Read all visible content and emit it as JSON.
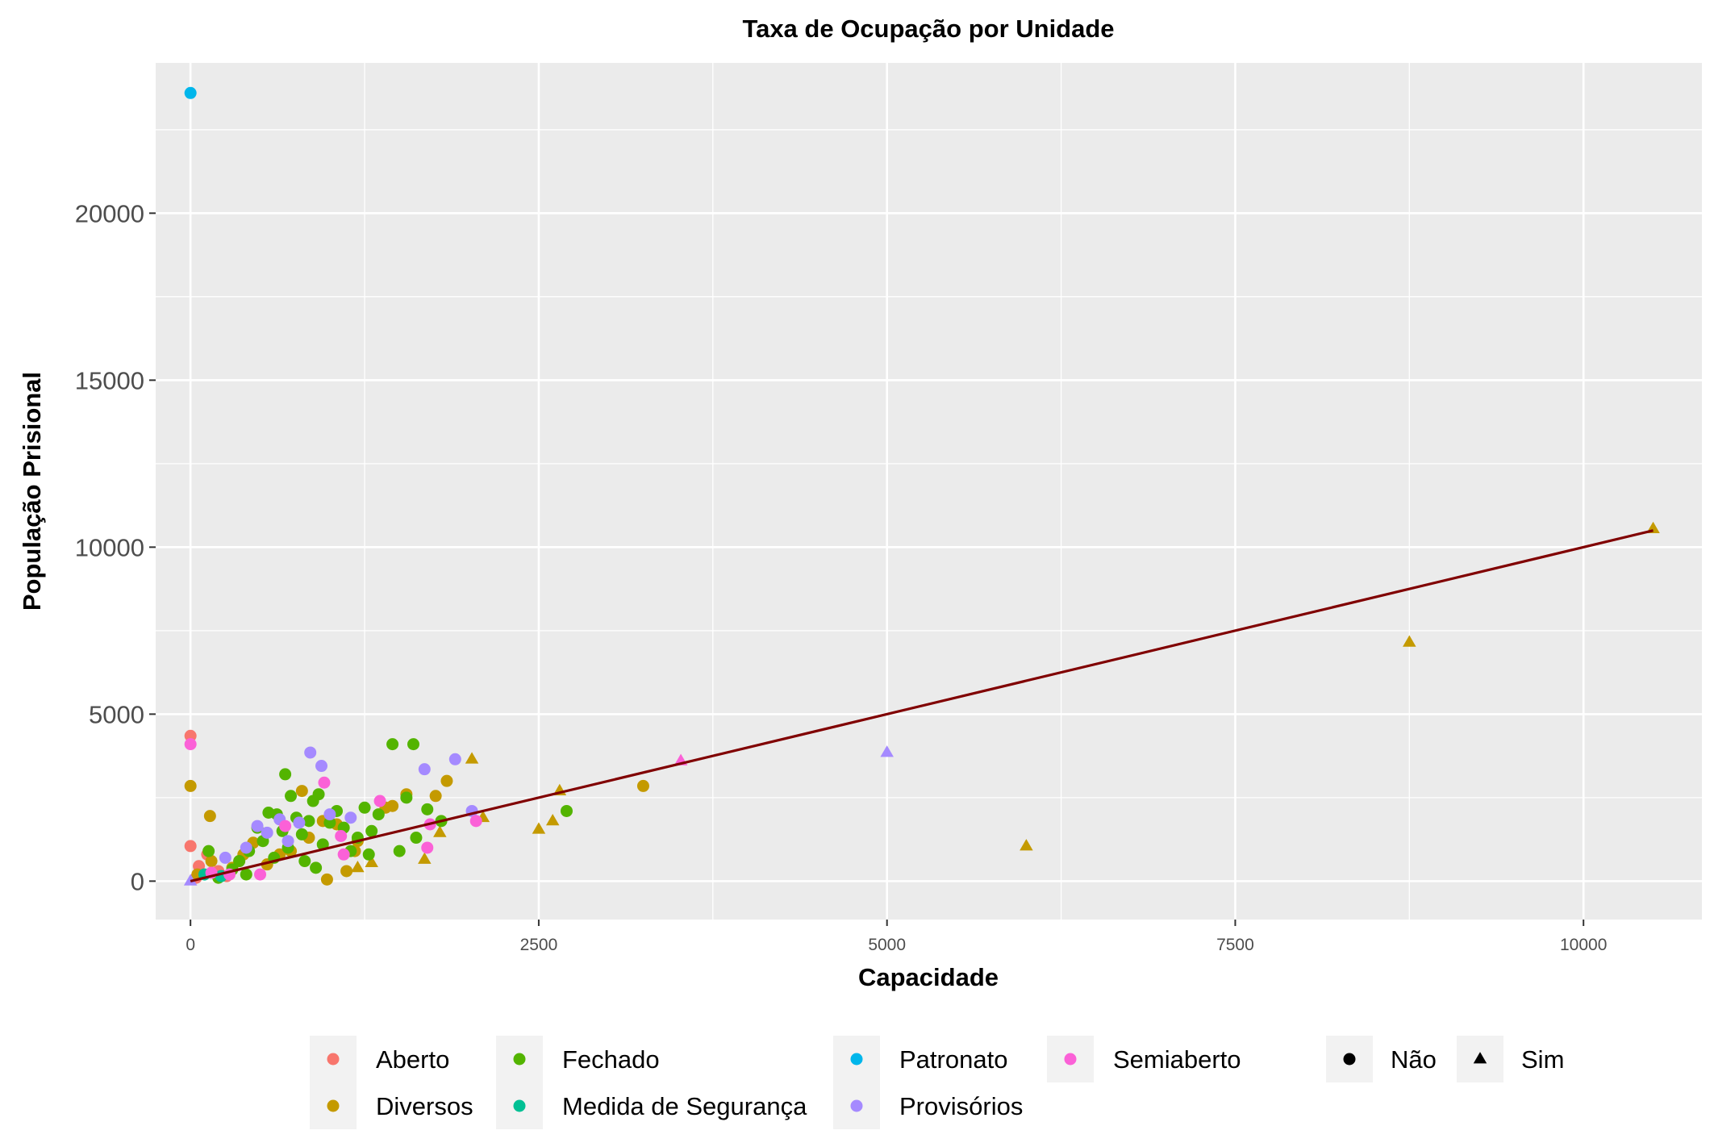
{
  "chart_data": {
    "type": "scatter",
    "title": "Taxa de Ocupação por Unidade",
    "xlabel": "Capacidade",
    "ylabel": "População Prisional",
    "xlim": [
      -250,
      10850
    ],
    "ylim": [
      -1150,
      24500
    ],
    "x_ticks": [
      0,
      2500,
      5000,
      7500,
      10000
    ],
    "y_ticks": [
      0,
      5000,
      10000,
      15000,
      20000
    ],
    "grid": true,
    "legend_position": "bottom",
    "color_legend": [
      {
        "name": "Aberto",
        "color": "#F8766D"
      },
      {
        "name": "Diversos",
        "color": "#C49A00"
      },
      {
        "name": "Fechado",
        "color": "#53B400"
      },
      {
        "name": "Medida de Segurança",
        "color": "#00C094"
      },
      {
        "name": "Patronato",
        "color": "#00B6EB"
      },
      {
        "name": "Provisórios",
        "color": "#A58AFF"
      },
      {
        "name": "Semiaberto",
        "color": "#FB61D7"
      }
    ],
    "shape_legend": [
      {
        "name": "Não",
        "shape": "circle"
      },
      {
        "name": "Sim",
        "shape": "triangle"
      }
    ],
    "trend_line": {
      "x": [
        0,
        10500
      ],
      "y": [
        0,
        10500
      ],
      "color": "#800000"
    },
    "series": [
      {
        "name": "Aberto",
        "color": "#F8766D",
        "points": [
          {
            "x": 0,
            "y": 4350,
            "s": "circle"
          },
          {
            "x": 0,
            "y": 1050,
            "s": "circle"
          },
          {
            "x": 60,
            "y": 450,
            "s": "circle"
          },
          {
            "x": 120,
            "y": 800,
            "s": "circle"
          },
          {
            "x": 200,
            "y": 300,
            "s": "circle"
          },
          {
            "x": 260,
            "y": 150,
            "s": "circle"
          },
          {
            "x": 40,
            "y": 100,
            "s": "circle"
          },
          {
            "x": 350,
            "y": 600,
            "s": "circle"
          }
        ]
      },
      {
        "name": "Diversos",
        "color": "#C49A00",
        "points": [
          {
            "x": 0,
            "y": 2850,
            "s": "circle"
          },
          {
            "x": 140,
            "y": 1950,
            "s": "circle"
          },
          {
            "x": 50,
            "y": 200,
            "s": "circle"
          },
          {
            "x": 150,
            "y": 600,
            "s": "circle"
          },
          {
            "x": 300,
            "y": 400,
            "s": "circle"
          },
          {
            "x": 380,
            "y": 800,
            "s": "circle"
          },
          {
            "x": 450,
            "y": 1150,
            "s": "circle"
          },
          {
            "x": 550,
            "y": 500,
            "s": "circle"
          },
          {
            "x": 640,
            "y": 800,
            "s": "circle"
          },
          {
            "x": 720,
            "y": 900,
            "s": "circle"
          },
          {
            "x": 800,
            "y": 2700,
            "s": "circle"
          },
          {
            "x": 850,
            "y": 1300,
            "s": "circle"
          },
          {
            "x": 950,
            "y": 1800,
            "s": "circle"
          },
          {
            "x": 980,
            "y": 50,
            "s": "circle"
          },
          {
            "x": 1050,
            "y": 1700,
            "s": "circle"
          },
          {
            "x": 1120,
            "y": 300,
            "s": "circle"
          },
          {
            "x": 1180,
            "y": 900,
            "s": "circle"
          },
          {
            "x": 1200,
            "y": 1200,
            "s": "circle"
          },
          {
            "x": 1400,
            "y": 2200,
            "s": "circle"
          },
          {
            "x": 1450,
            "y": 2250,
            "s": "circle"
          },
          {
            "x": 1550,
            "y": 2600,
            "s": "circle"
          },
          {
            "x": 1760,
            "y": 2550,
            "s": "circle"
          },
          {
            "x": 1840,
            "y": 3000,
            "s": "circle"
          },
          {
            "x": 3250,
            "y": 2850,
            "s": "circle"
          },
          {
            "x": 2020,
            "y": 3650,
            "s": "triangle"
          },
          {
            "x": 2100,
            "y": 1900,
            "s": "triangle"
          },
          {
            "x": 2500,
            "y": 1550,
            "s": "triangle"
          },
          {
            "x": 2600,
            "y": 1800,
            "s": "triangle"
          },
          {
            "x": 2650,
            "y": 2700,
            "s": "triangle"
          },
          {
            "x": 1680,
            "y": 650,
            "s": "triangle"
          },
          {
            "x": 1790,
            "y": 1450,
            "s": "triangle"
          },
          {
            "x": 1300,
            "y": 550,
            "s": "triangle"
          },
          {
            "x": 1200,
            "y": 400,
            "s": "triangle"
          },
          {
            "x": 6000,
            "y": 1050,
            "s": "triangle"
          },
          {
            "x": 8750,
            "y": 7150,
            "s": "triangle"
          },
          {
            "x": 10500,
            "y": 10550,
            "s": "triangle"
          }
        ]
      },
      {
        "name": "Fechado",
        "color": "#53B400",
        "points": [
          {
            "x": 130,
            "y": 900,
            "s": "circle"
          },
          {
            "x": 200,
            "y": 100,
            "s": "circle"
          },
          {
            "x": 300,
            "y": 350,
            "s": "circle"
          },
          {
            "x": 350,
            "y": 600,
            "s": "circle"
          },
          {
            "x": 400,
            "y": 200,
            "s": "circle"
          },
          {
            "x": 420,
            "y": 900,
            "s": "circle"
          },
          {
            "x": 480,
            "y": 1600,
            "s": "circle"
          },
          {
            "x": 520,
            "y": 1200,
            "s": "circle"
          },
          {
            "x": 560,
            "y": 2050,
            "s": "circle"
          },
          {
            "x": 600,
            "y": 700,
            "s": "circle"
          },
          {
            "x": 620,
            "y": 2000,
            "s": "circle"
          },
          {
            "x": 660,
            "y": 1500,
            "s": "circle"
          },
          {
            "x": 680,
            "y": 3200,
            "s": "circle"
          },
          {
            "x": 700,
            "y": 1000,
            "s": "circle"
          },
          {
            "x": 720,
            "y": 2550,
            "s": "circle"
          },
          {
            "x": 760,
            "y": 1900,
            "s": "circle"
          },
          {
            "x": 800,
            "y": 1400,
            "s": "circle"
          },
          {
            "x": 820,
            "y": 600,
            "s": "circle"
          },
          {
            "x": 850,
            "y": 1800,
            "s": "circle"
          },
          {
            "x": 880,
            "y": 2400,
            "s": "circle"
          },
          {
            "x": 900,
            "y": 400,
            "s": "circle"
          },
          {
            "x": 920,
            "y": 2600,
            "s": "circle"
          },
          {
            "x": 950,
            "y": 1100,
            "s": "circle"
          },
          {
            "x": 1000,
            "y": 1750,
            "s": "circle"
          },
          {
            "x": 1050,
            "y": 2100,
            "s": "circle"
          },
          {
            "x": 1100,
            "y": 1600,
            "s": "circle"
          },
          {
            "x": 1150,
            "y": 900,
            "s": "circle"
          },
          {
            "x": 1200,
            "y": 1300,
            "s": "circle"
          },
          {
            "x": 1250,
            "y": 2200,
            "s": "circle"
          },
          {
            "x": 1300,
            "y": 1500,
            "s": "circle"
          },
          {
            "x": 1350,
            "y": 2000,
            "s": "circle"
          },
          {
            "x": 1450,
            "y": 4100,
            "s": "circle"
          },
          {
            "x": 1500,
            "y": 900,
            "s": "circle"
          },
          {
            "x": 1550,
            "y": 2500,
            "s": "circle"
          },
          {
            "x": 1600,
            "y": 4100,
            "s": "circle"
          },
          {
            "x": 1620,
            "y": 1300,
            "s": "circle"
          },
          {
            "x": 1700,
            "y": 2150,
            "s": "circle"
          },
          {
            "x": 1800,
            "y": 1800,
            "s": "circle"
          },
          {
            "x": 2700,
            "y": 2100,
            "s": "circle"
          },
          {
            "x": 1280,
            "y": 800,
            "s": "circle"
          }
        ]
      },
      {
        "name": "Medida de Segurança",
        "color": "#00C094",
        "points": [
          {
            "x": 100,
            "y": 200,
            "s": "circle"
          },
          {
            "x": 220,
            "y": 150,
            "s": "circle"
          }
        ]
      },
      {
        "name": "Patronato",
        "color": "#00B6EB",
        "points": [
          {
            "x": 0,
            "y": 23600,
            "s": "circle"
          }
        ]
      },
      {
        "name": "Provisórios",
        "color": "#A58AFF",
        "points": [
          {
            "x": 250,
            "y": 700,
            "s": "circle"
          },
          {
            "x": 400,
            "y": 1000,
            "s": "circle"
          },
          {
            "x": 480,
            "y": 1650,
            "s": "circle"
          },
          {
            "x": 550,
            "y": 1450,
            "s": "circle"
          },
          {
            "x": 640,
            "y": 1850,
            "s": "circle"
          },
          {
            "x": 700,
            "y": 1200,
            "s": "circle"
          },
          {
            "x": 780,
            "y": 1750,
            "s": "circle"
          },
          {
            "x": 860,
            "y": 3850,
            "s": "circle"
          },
          {
            "x": 940,
            "y": 3450,
            "s": "circle"
          },
          {
            "x": 1000,
            "y": 2000,
            "s": "circle"
          },
          {
            "x": 1150,
            "y": 1900,
            "s": "circle"
          },
          {
            "x": 1680,
            "y": 3350,
            "s": "circle"
          },
          {
            "x": 1900,
            "y": 3650,
            "s": "circle"
          },
          {
            "x": 2020,
            "y": 2100,
            "s": "circle"
          },
          {
            "x": 5000,
            "y": 3850,
            "s": "triangle"
          },
          {
            "x": 0,
            "y": 0,
            "s": "triangle"
          }
        ]
      },
      {
        "name": "Semiaberto",
        "color": "#FB61D7",
        "points": [
          {
            "x": 0,
            "y": 4100,
            "s": "circle"
          },
          {
            "x": 150,
            "y": 250,
            "s": "circle"
          },
          {
            "x": 280,
            "y": 200,
            "s": "circle"
          },
          {
            "x": 500,
            "y": 200,
            "s": "circle"
          },
          {
            "x": 680,
            "y": 1650,
            "s": "circle"
          },
          {
            "x": 960,
            "y": 2950,
            "s": "circle"
          },
          {
            "x": 1080,
            "y": 1350,
            "s": "circle"
          },
          {
            "x": 1100,
            "y": 800,
            "s": "circle"
          },
          {
            "x": 1360,
            "y": 2400,
            "s": "circle"
          },
          {
            "x": 1700,
            "y": 1000,
            "s": "circle"
          },
          {
            "x": 1720,
            "y": 1700,
            "s": "circle"
          },
          {
            "x": 2050,
            "y": 1800,
            "s": "circle"
          },
          {
            "x": 3520,
            "y": 3600,
            "s": "triangle"
          }
        ]
      }
    ]
  }
}
